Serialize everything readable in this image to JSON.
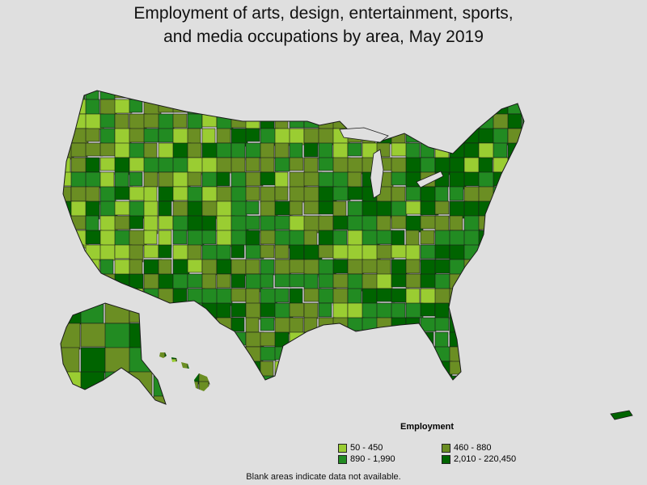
{
  "title": {
    "line1": "Employment of arts, design, entertainment, sports,",
    "line2": "and media occupations by area, May 2019"
  },
  "legend": {
    "title": "Employment",
    "items": [
      {
        "label": "50 - 450",
        "color": "#9acd32"
      },
      {
        "label": "460 - 880",
        "color": "#6b8e23"
      },
      {
        "label": "890 - 1,990",
        "color": "#228b22"
      },
      {
        "label": "2,010 - 220,450",
        "color": "#006400"
      }
    ]
  },
  "footnote": "Blank areas indicate data not available.",
  "colors": {
    "background": "#dfdfdf",
    "border": "#1a1a1a"
  }
}
